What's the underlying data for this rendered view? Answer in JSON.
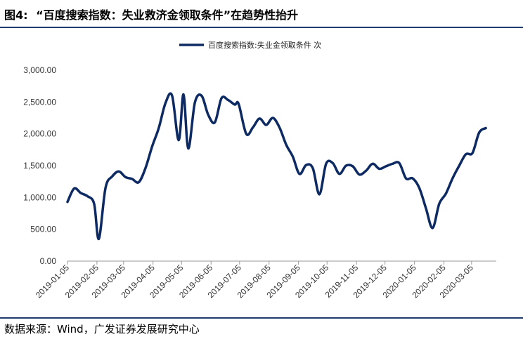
{
  "figure": {
    "number": "图4:",
    "title": "“百度搜索指数：失业救济金领取条件”在趋势性抬升",
    "source": "数据来源：Wind，广发证券发展研究中心"
  },
  "colors": {
    "line": "#0d2a63",
    "rule": "#1f3a6e"
  },
  "chart_data": {
    "type": "line",
    "title": "",
    "xlabel": "",
    "ylabel": "",
    "ylim": [
      0,
      3000
    ],
    "yticks": [
      "3,000.00",
      "2,500.00",
      "2,000.00",
      "1,500.00",
      "1,000.00",
      "500.00",
      "0.00"
    ],
    "ytick_values": [
      3000,
      2500,
      2000,
      1500,
      1000,
      500,
      0
    ],
    "xticks": [
      "2019-01-05",
      "2019-02-05",
      "2019-03-05",
      "2019-04-05",
      "2019-05-05",
      "2019-06-05",
      "2019-07-05",
      "2019-08-05",
      "2019-09-05",
      "2019-10-05",
      "2019-11-05",
      "2019-12-05",
      "2020-01-05",
      "2020-02-05",
      "2020-03-05"
    ],
    "xrange": [
      "2019-01-05",
      "2020-03-31"
    ],
    "legend": {
      "position": "top-center"
    },
    "grid": false,
    "series": [
      {
        "name": "百度搜索指数:失业金领取条件 次",
        "points": [
          [
            "2019-01-05",
            930
          ],
          [
            "2019-01-12",
            1140
          ],
          [
            "2019-01-19",
            1070
          ],
          [
            "2019-01-26",
            1020
          ],
          [
            "2019-02-02",
            900
          ],
          [
            "2019-02-07",
            350
          ],
          [
            "2019-02-14",
            1150
          ],
          [
            "2019-02-21",
            1330
          ],
          [
            "2019-02-28",
            1410
          ],
          [
            "2019-03-07",
            1320
          ],
          [
            "2019-03-14",
            1290
          ],
          [
            "2019-03-21",
            1240
          ],
          [
            "2019-03-28",
            1460
          ],
          [
            "2019-04-04",
            1800
          ],
          [
            "2019-04-11",
            2090
          ],
          [
            "2019-04-18",
            2480
          ],
          [
            "2019-04-25",
            2600
          ],
          [
            "2019-05-02",
            1900
          ],
          [
            "2019-05-07",
            2620
          ],
          [
            "2019-05-12",
            1770
          ],
          [
            "2019-05-19",
            2490
          ],
          [
            "2019-05-26",
            2600
          ],
          [
            "2019-06-02",
            2300
          ],
          [
            "2019-06-09",
            2180
          ],
          [
            "2019-06-16",
            2560
          ],
          [
            "2019-06-23",
            2530
          ],
          [
            "2019-06-30",
            2460
          ],
          [
            "2019-07-04",
            2470
          ],
          [
            "2019-07-12",
            2000
          ],
          [
            "2019-07-19",
            2100
          ],
          [
            "2019-07-26",
            2240
          ],
          [
            "2019-08-02",
            2140
          ],
          [
            "2019-08-09",
            2250
          ],
          [
            "2019-08-16",
            2100
          ],
          [
            "2019-08-23",
            1830
          ],
          [
            "2019-08-30",
            1640
          ],
          [
            "2019-09-06",
            1370
          ],
          [
            "2019-09-13",
            1510
          ],
          [
            "2019-09-20",
            1460
          ],
          [
            "2019-09-27",
            1050
          ],
          [
            "2019-10-04",
            1530
          ],
          [
            "2019-10-11",
            1540
          ],
          [
            "2019-10-18",
            1370
          ],
          [
            "2019-10-25",
            1500
          ],
          [
            "2019-11-01",
            1490
          ],
          [
            "2019-11-08",
            1360
          ],
          [
            "2019-11-15",
            1420
          ],
          [
            "2019-11-22",
            1530
          ],
          [
            "2019-11-29",
            1450
          ],
          [
            "2019-12-06",
            1490
          ],
          [
            "2019-12-13",
            1530
          ],
          [
            "2019-12-20",
            1540
          ],
          [
            "2019-12-27",
            1300
          ],
          [
            "2020-01-03",
            1300
          ],
          [
            "2020-01-10",
            1150
          ],
          [
            "2020-01-17",
            830
          ],
          [
            "2020-01-24",
            520
          ],
          [
            "2020-01-31",
            900
          ],
          [
            "2020-02-07",
            1060
          ],
          [
            "2020-02-14",
            1300
          ],
          [
            "2020-02-21",
            1500
          ],
          [
            "2020-02-28",
            1680
          ],
          [
            "2020-03-06",
            1700
          ],
          [
            "2020-03-13",
            2020
          ],
          [
            "2020-03-20",
            2090
          ]
        ]
      }
    ]
  }
}
